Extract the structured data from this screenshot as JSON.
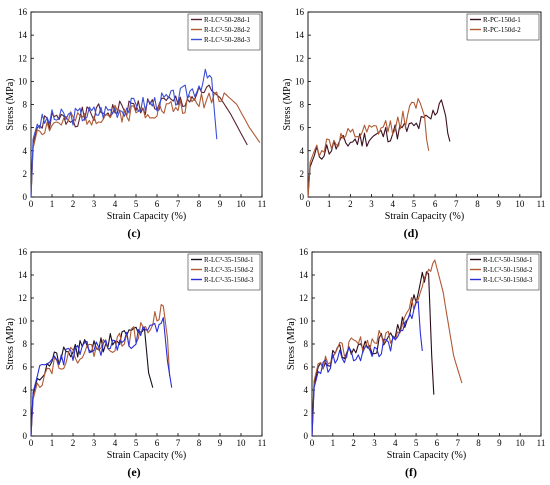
{
  "chart_data": [
    {
      "panel_label": "(c)",
      "type": "line",
      "xlabel": "Strain Capacity (%)",
      "ylabel": "Stress (MPa)",
      "xlim": [
        0,
        11
      ],
      "ylim": [
        0,
        16
      ],
      "xticks": [
        "0",
        "1",
        "2",
        "3",
        "4",
        "5",
        "6",
        "7",
        "8",
        "9",
        "10",
        "11"
      ],
      "yticks": [
        "0",
        "2",
        "4",
        "6",
        "8",
        "10",
        "12",
        "14",
        "16"
      ],
      "legend_position": "top-right",
      "series": [
        {
          "name": "R-LC³-50-28d-1",
          "color": "#5a2030",
          "x": [
            0,
            0.1,
            0.3,
            1,
            2,
            3,
            4,
            5,
            6,
            7,
            8,
            8.6,
            9.0,
            9.5,
            10,
            10.3
          ],
          "y": [
            0,
            4.6,
            6.0,
            6.6,
            6.8,
            7.2,
            7.5,
            7.8,
            8.0,
            8.2,
            8.7,
            9.2,
            8.6,
            7.2,
            5.5,
            4.5
          ]
        },
        {
          "name": "R-LC³-50-28d-2",
          "color": "#b05a35",
          "x": [
            0,
            0.1,
            0.3,
            1,
            2,
            3,
            4,
            5,
            6,
            7,
            8,
            8.6,
            9.2,
            9.8,
            10.4,
            10.9
          ],
          "y": [
            0,
            4.2,
            5.8,
            6.3,
            6.6,
            7.0,
            7.2,
            7.4,
            7.6,
            7.8,
            8.3,
            8.8,
            9.0,
            8.0,
            6.0,
            4.7
          ]
        },
        {
          "name": "R-LC³-50-28d-3",
          "color": "#3a4fd8",
          "x": [
            0,
            0.1,
            0.3,
            1,
            2,
            3,
            4,
            5,
            6,
            7,
            7.8,
            8.3,
            8.6,
            8.75,
            8.85
          ],
          "y": [
            0,
            5.0,
            6.3,
            6.8,
            7.0,
            7.3,
            7.6,
            7.9,
            8.2,
            8.6,
            9.4,
            10.3,
            10.3,
            7.0,
            5.0
          ]
        }
      ]
    },
    {
      "panel_label": "(d)",
      "type": "line",
      "xlabel": "Strain Capacity (%)",
      "ylabel": "Stress (MPa)",
      "xlim": [
        0,
        11
      ],
      "ylim": [
        0,
        16
      ],
      "xticks": [
        "0",
        "1",
        "2",
        "3",
        "4",
        "5",
        "6",
        "7",
        "8",
        "9",
        "10",
        "11"
      ],
      "yticks": [
        "0",
        "2",
        "4",
        "6",
        "8",
        "10",
        "12",
        "14",
        "16"
      ],
      "legend_position": "top-right",
      "series": [
        {
          "name": "R-PC-150d-1",
          "color": "#3a1020",
          "x": [
            0,
            0.1,
            0.3,
            1,
            2,
            3,
            4,
            5,
            5.8,
            6.3,
            6.5,
            6.6,
            6.7
          ],
          "y": [
            0,
            2.6,
            3.6,
            4.2,
            4.8,
            5.2,
            5.6,
            6.0,
            6.8,
            8.4,
            7.0,
            5.5,
            4.8
          ]
        },
        {
          "name": "R-PC-150d-2",
          "color": "#b05a35",
          "x": [
            0,
            0.1,
            0.3,
            1,
            2,
            3,
            4,
            4.6,
            5.0,
            5.3,
            5.5,
            5.6,
            5.7
          ],
          "y": [
            0,
            3.0,
            4.0,
            4.6,
            5.2,
            5.6,
            6.2,
            6.8,
            7.8,
            8.1,
            7.0,
            5.0,
            4.0
          ]
        }
      ]
    },
    {
      "panel_label": "(e)",
      "type": "line",
      "xlabel": "Strain Capacity (%)",
      "ylabel": "Stress (MPa)",
      "xlim": [
        0,
        11
      ],
      "ylim": [
        0,
        16
      ],
      "xticks": [
        "0",
        "1",
        "2",
        "3",
        "4",
        "5",
        "6",
        "7",
        "8",
        "9",
        "10",
        "11"
      ],
      "yticks": [
        "0",
        "2",
        "4",
        "6",
        "8",
        "10",
        "12",
        "14",
        "16"
      ],
      "legend_position": "top-right",
      "series": [
        {
          "name": "R-LC³-35-150d-1",
          "color": "#1a1020",
          "x": [
            0,
            0.1,
            0.3,
            1,
            2,
            3,
            4,
            5,
            5.4,
            5.6,
            5.8
          ],
          "y": [
            0,
            3.6,
            5.0,
            6.5,
            7.3,
            7.9,
            8.3,
            8.8,
            9.4,
            5.5,
            4.2
          ]
        },
        {
          "name": "R-LC³-35-150d-2",
          "color": "#b05a35",
          "x": [
            0,
            0.1,
            0.3,
            1,
            2,
            3,
            4,
            5,
            5.8,
            6.3,
            6.5,
            6.6
          ],
          "y": [
            0,
            3.2,
            4.6,
            6.2,
            7.0,
            7.6,
            8.1,
            8.8,
            9.8,
            11.3,
            8.5,
            5.2
          ]
        },
        {
          "name": "R-LC³-35-150d-3",
          "color": "#2a2fd8",
          "x": [
            0,
            0.1,
            0.3,
            1,
            2,
            3,
            4,
            5,
            6,
            6.3,
            6.5,
            6.7
          ],
          "y": [
            0,
            3.8,
            5.2,
            6.6,
            7.2,
            7.6,
            8.0,
            8.5,
            9.6,
            10.3,
            6.5,
            4.2
          ]
        }
      ]
    },
    {
      "panel_label": "(f)",
      "type": "line",
      "xlabel": "Strain Capacity (%)",
      "ylabel": "Stress (MPa)",
      "xlim": [
        0,
        11
      ],
      "ylim": [
        0,
        16
      ],
      "xticks": [
        "0",
        "1",
        "2",
        "3",
        "4",
        "5",
        "6",
        "7",
        "8",
        "9",
        "10",
        "11"
      ],
      "yticks": [
        "0",
        "2",
        "4",
        "6",
        "8",
        "10",
        "12",
        "14",
        "16"
      ],
      "legend_position": "top-right",
      "series": [
        {
          "name": "R-LC³-50-150d-1",
          "color": "#2a0a18",
          "x": [
            0,
            0.1,
            0.3,
            1,
            2,
            3,
            4,
            4.8,
            5.3,
            5.6,
            5.75,
            5.85
          ],
          "y": [
            0,
            4.5,
            6.0,
            7.0,
            7.5,
            7.9,
            8.6,
            11.0,
            13.6,
            14.1,
            7.0,
            3.6
          ]
        },
        {
          "name": "R-LC³-50-150d-2",
          "color": "#b05a35",
          "x": [
            0,
            0.1,
            0.3,
            1,
            2,
            3,
            4,
            5,
            5.5,
            5.9,
            6.3,
            6.8,
            7.2
          ],
          "y": [
            0,
            4.8,
            6.3,
            7.2,
            7.8,
            8.3,
            9.0,
            12.0,
            14.6,
            15.3,
            12.5,
            7.0,
            4.6
          ]
        },
        {
          "name": "R-LC³-50-150d-3",
          "color": "#2a2fd8",
          "x": [
            0,
            0.1,
            0.3,
            1,
            2,
            3,
            4,
            4.6,
            4.9,
            5.1,
            5.2,
            5.3
          ],
          "y": [
            0,
            4.2,
            5.6,
            6.6,
            7.1,
            7.4,
            8.0,
            9.8,
            11.5,
            11.7,
            9.0,
            7.4
          ]
        }
      ]
    }
  ]
}
